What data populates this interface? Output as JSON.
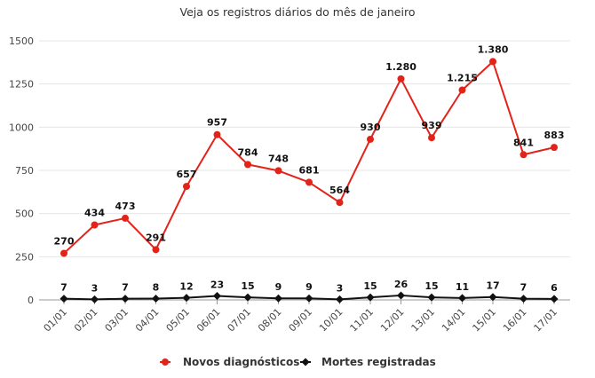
{
  "chart_data": {
    "type": "line",
    "title": "Veja os registros diários do mês de janeiro",
    "categories": [
      "01/01",
      "02/01",
      "03/01",
      "04/01",
      "05/01",
      "06/01",
      "07/01",
      "08/01",
      "09/01",
      "10/01",
      "11/01",
      "12/01",
      "13/01",
      "14/01",
      "15/01",
      "16/01",
      "17/01"
    ],
    "y_ticks": [
      "0",
      "250",
      "500",
      "750",
      "1000",
      "1250",
      "1500"
    ],
    "ylim": [
      0,
      1500
    ],
    "grid": true,
    "legend_position": "bottom",
    "series": [
      {
        "name": "Novos diagnósticos",
        "color": "#e2231a",
        "marker": "circle",
        "values": [
          270,
          434,
          473,
          291,
          657,
          957,
          784,
          748,
          681,
          564,
          930,
          1280,
          939,
          1215,
          1380,
          841,
          883
        ],
        "labels": [
          "270",
          "434",
          "473",
          "291",
          "657",
          "957",
          "784",
          "748",
          "681",
          "564",
          "930",
          "1.280",
          "939",
          "1.215",
          "1.380",
          "841",
          "883"
        ]
      },
      {
        "name": "Mortes registradas",
        "color": "#111111",
        "marker": "diamond",
        "values": [
          7,
          3,
          7,
          8,
          12,
          23,
          15,
          9,
          9,
          3,
          15,
          26,
          15,
          11,
          17,
          7,
          6
        ],
        "labels": [
          "7",
          "3",
          "7",
          "8",
          "12",
          "23",
          "15",
          "9",
          "9",
          "3",
          "15",
          "26",
          "15",
          "11",
          "17",
          "7",
          "6"
        ]
      }
    ]
  }
}
